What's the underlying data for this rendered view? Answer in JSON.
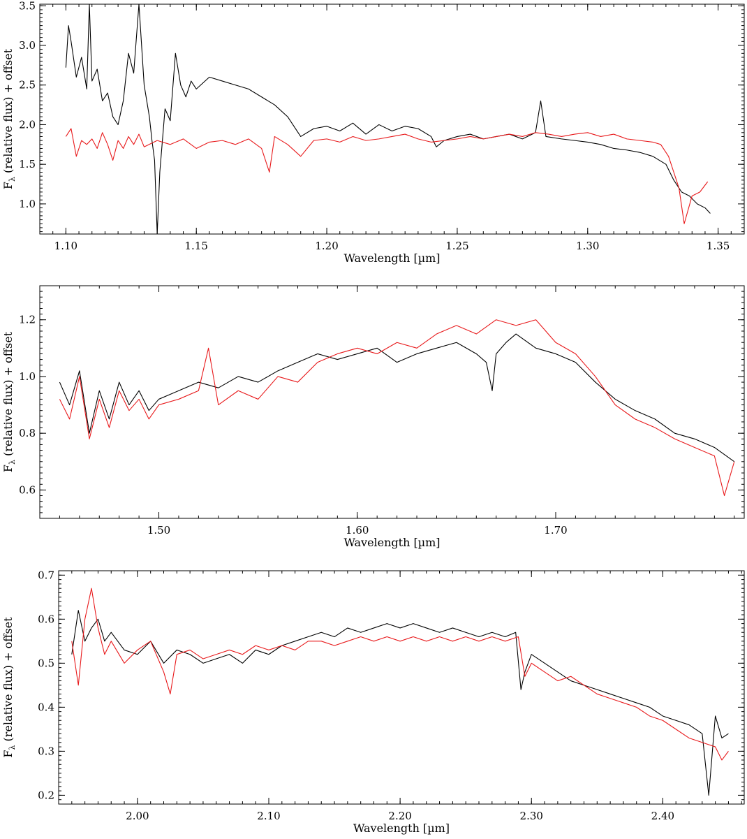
{
  "colors": {
    "observed": "#000000",
    "model": "#e8191b",
    "axes": "#000000"
  },
  "chart_data": [
    {
      "type": "line",
      "id": "panel-j-band",
      "title": "",
      "xlabel": "Wavelength [µm]",
      "ylabel": "F",
      "ylabel_sub": "λ",
      "ylabel_rest": " (relative flux) + offset",
      "xlim": [
        1.09,
        1.36
      ],
      "ylim": [
        0.62,
        3.52
      ],
      "x_ticks": [
        1.1,
        1.15,
        1.2,
        1.25,
        1.3,
        1.35
      ],
      "x_tick_labels": [
        "1.10",
        "1.15",
        "1.20",
        "1.25",
        "1.30",
        "1.35"
      ],
      "y_ticks": [
        1.0,
        1.5,
        2.0,
        2.5,
        3.0,
        3.5
      ],
      "y_tick_labels": [
        "1.0",
        "1.5",
        "2.0",
        "2.5",
        "3.0",
        "3.5"
      ],
      "grid": false,
      "series": [
        {
          "color": "#000000",
          "x": [
            1.1,
            1.101,
            1.102,
            1.104,
            1.106,
            1.108,
            1.109,
            1.11,
            1.112,
            1.114,
            1.116,
            1.118,
            1.12,
            1.122,
            1.124,
            1.126,
            1.128,
            1.13,
            1.132,
            1.133,
            1.134,
            1.135,
            1.136,
            1.138,
            1.14,
            1.142,
            1.144,
            1.146,
            1.148,
            1.15,
            1.155,
            1.16,
            1.165,
            1.17,
            1.175,
            1.18,
            1.185,
            1.19,
            1.195,
            1.2,
            1.205,
            1.21,
            1.215,
            1.22,
            1.225,
            1.23,
            1.235,
            1.24,
            1.242,
            1.245,
            1.25,
            1.255,
            1.26,
            1.265,
            1.27,
            1.275,
            1.28,
            1.282,
            1.284,
            1.29,
            1.295,
            1.3,
            1.305,
            1.31,
            1.315,
            1.32,
            1.325,
            1.33,
            1.333,
            1.336,
            1.339,
            1.342,
            1.345,
            1.347
          ],
          "y": [
            2.72,
            3.25,
            3.05,
            2.6,
            2.85,
            2.45,
            3.52,
            2.55,
            2.7,
            2.3,
            2.4,
            2.1,
            2.0,
            2.3,
            2.9,
            2.65,
            3.52,
            2.5,
            2.1,
            1.8,
            1.55,
            0.62,
            1.4,
            2.2,
            2.05,
            2.9,
            2.5,
            2.35,
            2.55,
            2.45,
            2.6,
            2.55,
            2.5,
            2.45,
            2.35,
            2.25,
            2.1,
            1.85,
            1.95,
            1.98,
            1.92,
            2.02,
            1.88,
            2.0,
            1.92,
            1.98,
            1.95,
            1.85,
            1.72,
            1.8,
            1.85,
            1.88,
            1.82,
            1.85,
            1.88,
            1.82,
            1.9,
            2.3,
            1.85,
            1.82,
            1.8,
            1.78,
            1.75,
            1.7,
            1.68,
            1.65,
            1.6,
            1.5,
            1.3,
            1.15,
            1.1,
            1.0,
            0.95,
            0.88
          ]
        },
        {
          "color": "#e8191b",
          "x": [
            1.1,
            1.102,
            1.104,
            1.106,
            1.108,
            1.11,
            1.112,
            1.114,
            1.116,
            1.118,
            1.12,
            1.122,
            1.124,
            1.126,
            1.128,
            1.13,
            1.135,
            1.14,
            1.145,
            1.15,
            1.155,
            1.16,
            1.165,
            1.17,
            1.175,
            1.178,
            1.18,
            1.185,
            1.19,
            1.195,
            1.2,
            1.205,
            1.21,
            1.215,
            1.22,
            1.225,
            1.23,
            1.235,
            1.24,
            1.245,
            1.25,
            1.255,
            1.26,
            1.265,
            1.27,
            1.275,
            1.28,
            1.285,
            1.29,
            1.295,
            1.3,
            1.305,
            1.31,
            1.315,
            1.32,
            1.325,
            1.328,
            1.331,
            1.333,
            1.335,
            1.337,
            1.34,
            1.343,
            1.346
          ],
          "y": [
            1.85,
            1.95,
            1.6,
            1.8,
            1.75,
            1.82,
            1.7,
            1.9,
            1.75,
            1.55,
            1.8,
            1.7,
            1.85,
            1.75,
            1.88,
            1.72,
            1.8,
            1.75,
            1.82,
            1.7,
            1.78,
            1.8,
            1.75,
            1.82,
            1.7,
            1.4,
            1.85,
            1.75,
            1.6,
            1.8,
            1.82,
            1.78,
            1.85,
            1.8,
            1.82,
            1.85,
            1.88,
            1.82,
            1.78,
            1.8,
            1.82,
            1.85,
            1.82,
            1.85,
            1.88,
            1.85,
            1.9,
            1.88,
            1.85,
            1.88,
            1.9,
            1.85,
            1.88,
            1.82,
            1.8,
            1.78,
            1.75,
            1.6,
            1.4,
            1.2,
            0.75,
            1.1,
            1.15,
            1.28
          ]
        }
      ]
    },
    {
      "type": "line",
      "id": "panel-h-band",
      "title": "",
      "xlabel": "Wavelength [µm]",
      "ylabel": "F",
      "ylabel_sub": "λ",
      "ylabel_rest": " (relative flux) + offset",
      "xlim": [
        1.44,
        1.795
      ],
      "ylim": [
        0.5,
        1.32
      ],
      "x_ticks": [
        1.5,
        1.6,
        1.7
      ],
      "x_tick_labels": [
        "1.50",
        "1.60",
        "1.70"
      ],
      "y_ticks": [
        0.6,
        0.8,
        1.0,
        1.2
      ],
      "y_tick_labels": [
        "0.6",
        "0.8",
        "1.0",
        "1.2"
      ],
      "grid": false,
      "series": [
        {
          "color": "#000000",
          "x": [
            1.45,
            1.455,
            1.46,
            1.465,
            1.47,
            1.475,
            1.48,
            1.485,
            1.49,
            1.495,
            1.5,
            1.51,
            1.52,
            1.53,
            1.54,
            1.55,
            1.56,
            1.57,
            1.58,
            1.59,
            1.6,
            1.61,
            1.62,
            1.63,
            1.64,
            1.65,
            1.66,
            1.665,
            1.668,
            1.67,
            1.675,
            1.68,
            1.69,
            1.7,
            1.71,
            1.72,
            1.73,
            1.74,
            1.75,
            1.76,
            1.77,
            1.78,
            1.79
          ],
          "y": [
            0.98,
            0.9,
            1.02,
            0.8,
            0.95,
            0.85,
            0.98,
            0.9,
            0.95,
            0.88,
            0.92,
            0.95,
            0.98,
            0.96,
            1.0,
            0.98,
            1.02,
            1.05,
            1.08,
            1.06,
            1.08,
            1.1,
            1.05,
            1.08,
            1.1,
            1.12,
            1.08,
            1.05,
            0.95,
            1.08,
            1.12,
            1.15,
            1.1,
            1.08,
            1.05,
            0.98,
            0.92,
            0.88,
            0.85,
            0.8,
            0.78,
            0.75,
            0.7
          ]
        },
        {
          "color": "#e8191b",
          "x": [
            1.45,
            1.455,
            1.46,
            1.465,
            1.47,
            1.475,
            1.48,
            1.485,
            1.49,
            1.495,
            1.5,
            1.51,
            1.52,
            1.525,
            1.53,
            1.54,
            1.55,
            1.56,
            1.57,
            1.58,
            1.59,
            1.6,
            1.61,
            1.62,
            1.63,
            1.64,
            1.65,
            1.66,
            1.67,
            1.68,
            1.69,
            1.7,
            1.71,
            1.72,
            1.73,
            1.74,
            1.75,
            1.76,
            1.77,
            1.78,
            1.785,
            1.79
          ],
          "y": [
            0.92,
            0.85,
            1.0,
            0.78,
            0.92,
            0.82,
            0.95,
            0.88,
            0.92,
            0.85,
            0.9,
            0.92,
            0.95,
            1.1,
            0.9,
            0.95,
            0.92,
            1.0,
            0.98,
            1.05,
            1.08,
            1.1,
            1.08,
            1.12,
            1.1,
            1.15,
            1.18,
            1.15,
            1.2,
            1.18,
            1.2,
            1.12,
            1.08,
            1.0,
            0.9,
            0.85,
            0.82,
            0.78,
            0.75,
            0.72,
            0.58,
            0.7
          ]
        }
      ]
    },
    {
      "type": "line",
      "id": "panel-k-band",
      "title": "",
      "xlabel": "Wavelength [µm]",
      "ylabel": "F",
      "ylabel_sub": "λ",
      "ylabel_rest": " (relative flux) + offset",
      "xlim": [
        1.94,
        2.462
      ],
      "ylim": [
        0.18,
        0.71
      ],
      "x_ticks": [
        2.0,
        2.1,
        2.2,
        2.3,
        2.4
      ],
      "x_tick_labels": [
        "2.00",
        "2.10",
        "2.20",
        "2.30",
        "2.40"
      ],
      "y_ticks": [
        0.2,
        0.3,
        0.4,
        0.5,
        0.6,
        0.7
      ],
      "y_tick_labels": [
        "0.2",
        "0.3",
        "0.4",
        "0.5",
        "0.6",
        "0.7"
      ],
      "grid": false,
      "series": [
        {
          "color": "#000000",
          "x": [
            1.95,
            1.955,
            1.96,
            1.965,
            1.97,
            1.975,
            1.98,
            1.99,
            2.0,
            2.01,
            2.02,
            2.03,
            2.04,
            2.05,
            2.06,
            2.07,
            2.08,
            2.09,
            2.1,
            2.11,
            2.12,
            2.13,
            2.14,
            2.15,
            2.16,
            2.17,
            2.18,
            2.19,
            2.2,
            2.21,
            2.22,
            2.23,
            2.24,
            2.25,
            2.26,
            2.27,
            2.28,
            2.288,
            2.292,
            2.295,
            2.3,
            2.31,
            2.32,
            2.33,
            2.34,
            2.35,
            2.36,
            2.37,
            2.38,
            2.39,
            2.4,
            2.41,
            2.42,
            2.43,
            2.435,
            2.44,
            2.445,
            2.45
          ],
          "y": [
            0.52,
            0.62,
            0.55,
            0.58,
            0.6,
            0.55,
            0.57,
            0.53,
            0.52,
            0.55,
            0.5,
            0.53,
            0.52,
            0.5,
            0.51,
            0.52,
            0.5,
            0.53,
            0.52,
            0.54,
            0.55,
            0.56,
            0.57,
            0.56,
            0.58,
            0.57,
            0.58,
            0.59,
            0.58,
            0.59,
            0.58,
            0.57,
            0.58,
            0.57,
            0.56,
            0.57,
            0.56,
            0.57,
            0.44,
            0.48,
            0.52,
            0.5,
            0.48,
            0.46,
            0.45,
            0.44,
            0.43,
            0.42,
            0.41,
            0.4,
            0.38,
            0.37,
            0.36,
            0.34,
            0.2,
            0.38,
            0.33,
            0.34
          ]
        },
        {
          "color": "#e8191b",
          "x": [
            1.95,
            1.955,
            1.96,
            1.965,
            1.97,
            1.975,
            1.98,
            1.99,
            2.0,
            2.01,
            2.02,
            2.025,
            2.03,
            2.04,
            2.05,
            2.06,
            2.07,
            2.08,
            2.09,
            2.1,
            2.11,
            2.12,
            2.13,
            2.14,
            2.15,
            2.16,
            2.17,
            2.18,
            2.19,
            2.2,
            2.21,
            2.22,
            2.23,
            2.24,
            2.25,
            2.26,
            2.27,
            2.28,
            2.29,
            2.295,
            2.3,
            2.31,
            2.32,
            2.33,
            2.34,
            2.35,
            2.36,
            2.37,
            2.38,
            2.39,
            2.4,
            2.41,
            2.42,
            2.43,
            2.44,
            2.445,
            2.45
          ],
          "y": [
            0.55,
            0.45,
            0.6,
            0.67,
            0.58,
            0.52,
            0.55,
            0.5,
            0.53,
            0.55,
            0.48,
            0.43,
            0.52,
            0.53,
            0.51,
            0.52,
            0.53,
            0.52,
            0.54,
            0.53,
            0.54,
            0.53,
            0.55,
            0.55,
            0.54,
            0.55,
            0.56,
            0.55,
            0.56,
            0.55,
            0.56,
            0.55,
            0.56,
            0.55,
            0.56,
            0.55,
            0.56,
            0.55,
            0.56,
            0.47,
            0.5,
            0.48,
            0.46,
            0.47,
            0.45,
            0.43,
            0.42,
            0.41,
            0.4,
            0.38,
            0.37,
            0.35,
            0.33,
            0.32,
            0.31,
            0.28,
            0.3
          ]
        }
      ]
    }
  ]
}
